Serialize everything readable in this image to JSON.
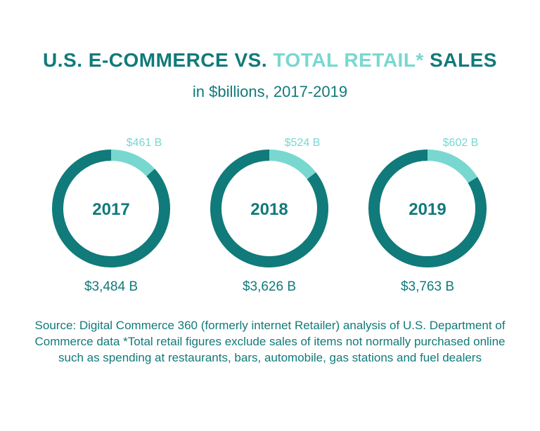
{
  "title": {
    "part1": "U.S. E-COMMERCE VS.",
    "part2": "TOTAL RETAIL*",
    "part3": "SALES"
  },
  "subtitle": "in $billions, 2017-2019",
  "colors": {
    "ecommerce": "#78d8d0",
    "total_retail": "#117a7a",
    "text": "#117a7a"
  },
  "chart_data": {
    "type": "pie",
    "categories": [
      "2017",
      "2018",
      "2019"
    ],
    "series": [
      {
        "values": [
          461,
          524,
          602
        ],
        "labels": [
          "$461 B",
          "$524 B",
          "$602 B"
        ]
      },
      {
        "values": [
          3484,
          3626,
          3763
        ],
        "labels": [
          "$3,484 B",
          "$3,626 B",
          "$3,763 B"
        ]
      }
    ]
  },
  "source": "Source: Digital Commerce 360 (formerly internet Retailer) analysis of U.S. Department of Commerce data *Total retail figures exclude sales of items not normally purchased online such as spending at restaurants, bars, automobile, gas stations and fuel dealers"
}
